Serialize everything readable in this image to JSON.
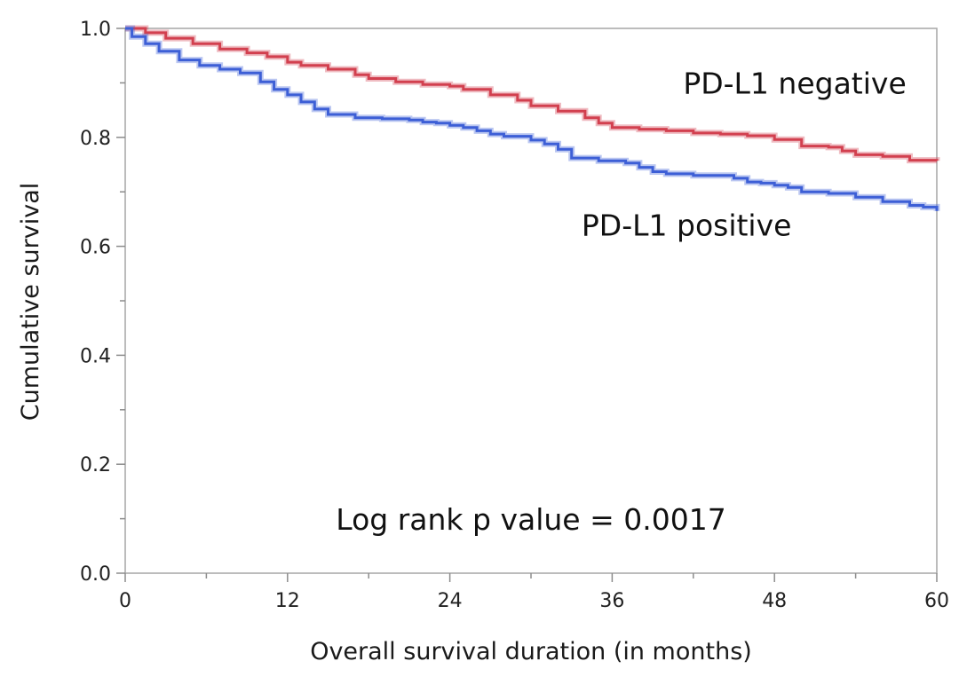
{
  "chart_data": {
    "type": "line",
    "subtype": "kaplan-meier",
    "title": "",
    "xlabel": "Overall survival duration (in months)",
    "ylabel": "Cumulative survival",
    "xlim": [
      0,
      60
    ],
    "ylim": [
      0,
      1
    ],
    "x_ticks": [
      0,
      12,
      24,
      36,
      48,
      60
    ],
    "x_tick_labels": [
      "0",
      "12",
      "24",
      "36",
      "48",
      "60"
    ],
    "y_ticks": [
      0,
      0.2,
      0.4,
      0.6,
      0.8,
      1.0
    ],
    "y_tick_labels": [
      "0.0",
      "0.2",
      "0.4",
      "0.6",
      "0.8",
      "1.0"
    ],
    "grid": false,
    "series": [
      {
        "name": "PD-L1 negative",
        "color": "#d2404f",
        "points": [
          [
            0,
            1.0
          ],
          [
            1.5,
            0.992
          ],
          [
            3,
            0.982
          ],
          [
            5,
            0.972
          ],
          [
            7,
            0.962
          ],
          [
            9,
            0.955
          ],
          [
            10.5,
            0.948
          ],
          [
            12,
            0.938
          ],
          [
            13,
            0.932
          ],
          [
            15,
            0.925
          ],
          [
            17,
            0.915
          ],
          [
            18,
            0.908
          ],
          [
            20,
            0.902
          ],
          [
            22,
            0.897
          ],
          [
            24,
            0.894
          ],
          [
            25,
            0.888
          ],
          [
            27,
            0.878
          ],
          [
            29,
            0.868
          ],
          [
            30,
            0.858
          ],
          [
            32,
            0.848
          ],
          [
            34,
            0.836
          ],
          [
            35,
            0.826
          ],
          [
            36,
            0.818
          ],
          [
            38,
            0.815
          ],
          [
            40,
            0.812
          ],
          [
            42,
            0.808
          ],
          [
            44,
            0.806
          ],
          [
            46,
            0.803
          ],
          [
            48,
            0.796
          ],
          [
            50,
            0.784
          ],
          [
            52,
            0.782
          ],
          [
            53,
            0.775
          ],
          [
            54,
            0.768
          ],
          [
            56,
            0.765
          ],
          [
            58,
            0.758
          ],
          [
            60,
            0.757
          ]
        ]
      },
      {
        "name": "PD-L1 positive",
        "color": "#3d5fd6",
        "points": [
          [
            0,
            1.0
          ],
          [
            0.5,
            0.985
          ],
          [
            1.5,
            0.972
          ],
          [
            2.5,
            0.958
          ],
          [
            4,
            0.942
          ],
          [
            5.5,
            0.932
          ],
          [
            7,
            0.925
          ],
          [
            8.5,
            0.918
          ],
          [
            10,
            0.902
          ],
          [
            11,
            0.888
          ],
          [
            12,
            0.878
          ],
          [
            13,
            0.865
          ],
          [
            14,
            0.852
          ],
          [
            15,
            0.842
          ],
          [
            17,
            0.836
          ],
          [
            19,
            0.834
          ],
          [
            21,
            0.832
          ],
          [
            22,
            0.828
          ],
          [
            23,
            0.826
          ],
          [
            24,
            0.822
          ],
          [
            25,
            0.818
          ],
          [
            26,
            0.812
          ],
          [
            27,
            0.806
          ],
          [
            28,
            0.802
          ],
          [
            30,
            0.795
          ],
          [
            31,
            0.788
          ],
          [
            32,
            0.778
          ],
          [
            33,
            0.762
          ],
          [
            35,
            0.757
          ],
          [
            37,
            0.753
          ],
          [
            38,
            0.745
          ],
          [
            39,
            0.737
          ],
          [
            40,
            0.733
          ],
          [
            42,
            0.73
          ],
          [
            44,
            0.73
          ],
          [
            45,
            0.725
          ],
          [
            46,
            0.718
          ],
          [
            47,
            0.716
          ],
          [
            48,
            0.712
          ],
          [
            49,
            0.708
          ],
          [
            50,
            0.7
          ],
          [
            52,
            0.697
          ],
          [
            54,
            0.69
          ],
          [
            56,
            0.682
          ],
          [
            58,
            0.675
          ],
          [
            59,
            0.672
          ],
          [
            60,
            0.665
          ]
        ]
      }
    ],
    "annotations": [
      {
        "text": "PD-L1 negative",
        "x": 49.5,
        "y": 0.88
      },
      {
        "text": "PD-L1 positive",
        "x": 41.5,
        "y": 0.62
      },
      {
        "text": "Log rank p value = 0.0017",
        "x": 30,
        "y": 0.08
      }
    ]
  }
}
